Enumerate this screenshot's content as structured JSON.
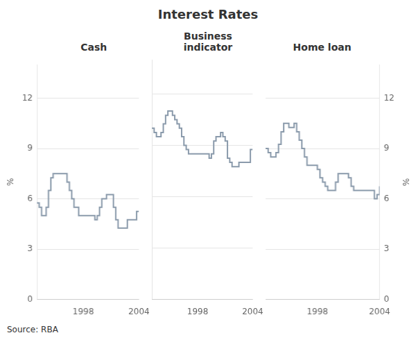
{
  "chart_data": {
    "type": "line",
    "title": "Interest Rates",
    "annotations": [
      "Source: RBA"
    ],
    "ylabel": "%",
    "y2label": "%",
    "ylim": [
      0,
      14
    ],
    "yticks": [
      0,
      3,
      6,
      9,
      12
    ],
    "y2lim": [
      0,
      14
    ],
    "y2ticks": [
      0,
      3,
      6,
      9,
      12
    ],
    "xlim": [
      1993,
      2004
    ],
    "xticks": [
      1998,
      2004
    ],
    "grid": true,
    "line_style": "step",
    "color": "#8a9aab",
    "x": [
      1993.0,
      1993.25,
      1993.5,
      1993.75,
      1994.0,
      1994.25,
      1994.5,
      1994.75,
      1995.0,
      1995.25,
      1995.5,
      1995.75,
      1996.0,
      1996.25,
      1996.5,
      1996.75,
      1997.0,
      1997.25,
      1997.5,
      1997.75,
      1998.0,
      1998.25,
      1998.5,
      1998.75,
      1999.0,
      1999.25,
      1999.5,
      1999.75,
      2000.0,
      2000.25,
      2000.5,
      2000.75,
      2001.0,
      2001.25,
      2001.5,
      2001.75,
      2002.0,
      2002.25,
      2002.5,
      2002.75,
      2003.0,
      2003.25,
      2003.5,
      2003.75,
      2004.0
    ],
    "series": [
      {
        "name": "Cash",
        "values": [
          5.75,
          5.5,
          5.0,
          5.0,
          5.5,
          6.5,
          7.25,
          7.5,
          7.5,
          7.5,
          7.5,
          7.5,
          7.5,
          7.0,
          6.5,
          6.0,
          5.5,
          5.5,
          5.0,
          5.0,
          5.0,
          5.0,
          5.0,
          5.0,
          5.0,
          4.75,
          5.0,
          5.5,
          6.0,
          6.0,
          6.25,
          6.25,
          6.25,
          5.5,
          4.75,
          4.25,
          4.25,
          4.25,
          4.25,
          4.75,
          4.75,
          4.75,
          4.75,
          5.25,
          5.25
        ]
      },
      {
        "name": "Business\nindicator",
        "values": [
          10.0,
          9.75,
          9.5,
          9.5,
          9.75,
          10.25,
          10.75,
          11.0,
          11.0,
          10.75,
          10.5,
          10.25,
          10.0,
          9.5,
          9.0,
          8.75,
          8.5,
          8.5,
          8.5,
          8.5,
          8.5,
          8.5,
          8.5,
          8.5,
          8.5,
          8.25,
          8.5,
          9.25,
          9.5,
          9.5,
          9.75,
          9.5,
          9.25,
          8.25,
          8.0,
          7.75,
          7.75,
          7.75,
          8.0,
          8.0,
          8.0,
          8.0,
          8.0,
          8.75,
          8.75
        ]
      },
      {
        "name": "Home loan",
        "values": [
          9.0,
          8.75,
          8.5,
          8.5,
          8.75,
          9.25,
          10.0,
          10.5,
          10.5,
          10.25,
          10.25,
          10.5,
          10.0,
          9.5,
          9.0,
          8.5,
          8.0,
          8.0,
          8.0,
          8.0,
          7.75,
          7.25,
          7.0,
          6.75,
          6.5,
          6.5,
          6.5,
          7.0,
          7.5,
          7.5,
          7.5,
          7.5,
          7.25,
          6.75,
          6.5,
          6.5,
          6.5,
          6.5,
          6.5,
          6.5,
          6.5,
          6.5,
          6.0,
          6.25,
          6.75
        ]
      }
    ]
  }
}
